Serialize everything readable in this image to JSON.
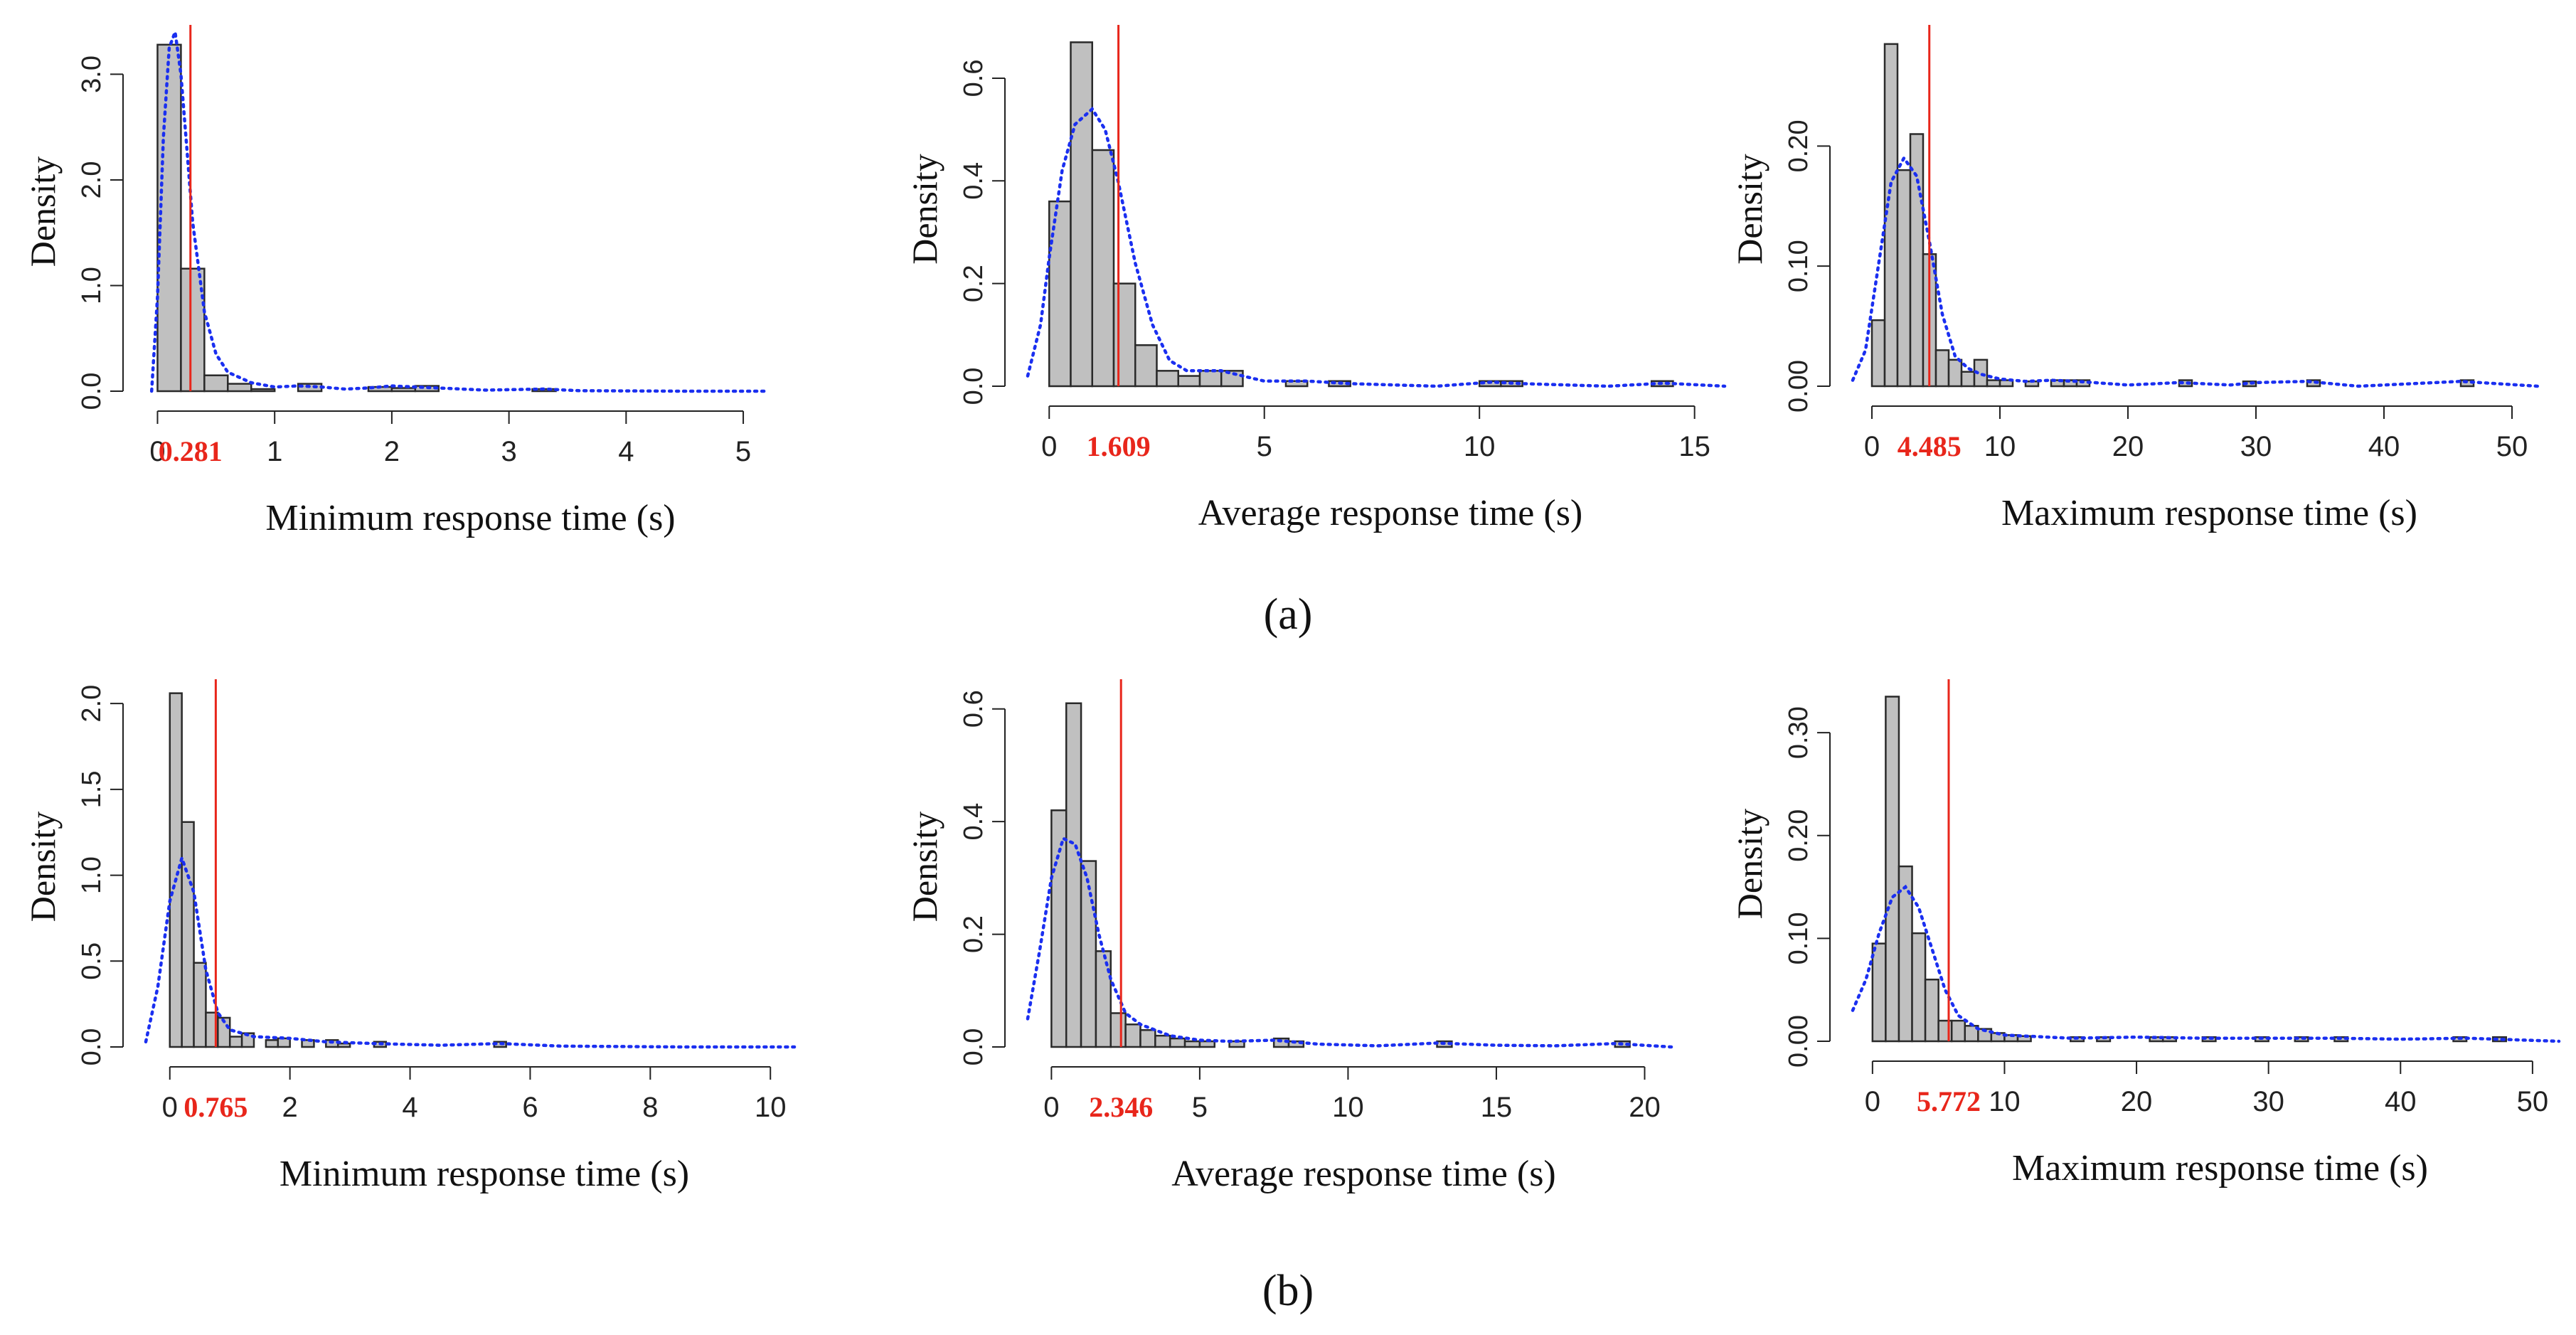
{
  "figure": {
    "row_labels": [
      "(a)",
      "(b)"
    ]
  },
  "colors": {
    "bar_fill": "#c0c0c0",
    "bar_stroke": "#2a2a2a",
    "density_curve": "#1a2ff0",
    "mean_line": "#e8261b",
    "mean_label": "#e8261b",
    "axis": "#222222"
  },
  "chart_data": [
    {
      "type": "bar",
      "subtype": "histogram",
      "row": 0,
      "col": 0,
      "xlabel": "Minimum response time (s)",
      "ylabel": "Density",
      "xlim": [
        -0.1,
        5.2
      ],
      "ylim": [
        0,
        3.4
      ],
      "xticks": [
        0,
        1,
        2,
        3,
        4,
        5
      ],
      "xtick_labels": [
        "0",
        "1",
        "2",
        "3",
        "4",
        "5"
      ],
      "yticks": [
        0,
        1,
        2,
        3
      ],
      "ytick_labels": [
        "0.0",
        "1.0",
        "2.0",
        "3.0"
      ],
      "bin_width": 0.2,
      "bins": [
        [
          0.0,
          3.28
        ],
        [
          0.2,
          1.16
        ],
        [
          0.4,
          0.15
        ],
        [
          0.6,
          0.07
        ],
        [
          0.8,
          0.02
        ],
        [
          1.2,
          0.07
        ],
        [
          1.8,
          0.04
        ],
        [
          2.0,
          0.03
        ],
        [
          2.2,
          0.05
        ],
        [
          3.2,
          0.02
        ]
      ],
      "density_curve": [
        [
          -0.05,
          0.0
        ],
        [
          0.0,
          0.9
        ],
        [
          0.05,
          2.4
        ],
        [
          0.1,
          3.25
        ],
        [
          0.15,
          3.4
        ],
        [
          0.2,
          3.0
        ],
        [
          0.25,
          2.3
        ],
        [
          0.3,
          1.6
        ],
        [
          0.4,
          0.75
        ],
        [
          0.5,
          0.35
        ],
        [
          0.6,
          0.18
        ],
        [
          0.8,
          0.08
        ],
        [
          1.0,
          0.04
        ],
        [
          1.2,
          0.05
        ],
        [
          1.4,
          0.04
        ],
        [
          1.6,
          0.02
        ],
        [
          1.8,
          0.03
        ],
        [
          2.0,
          0.05
        ],
        [
          2.2,
          0.04
        ],
        [
          2.4,
          0.03
        ],
        [
          2.8,
          0.01
        ],
        [
          3.3,
          0.02
        ],
        [
          3.6,
          0.005
        ],
        [
          4.5,
          0.0
        ],
        [
          5.2,
          0.0
        ]
      ],
      "mean_value": 0.281,
      "mean_label": "0.281"
    },
    {
      "type": "bar",
      "subtype": "histogram",
      "row": 0,
      "col": 1,
      "xlabel": "Average response time (s)",
      "ylabel": "Density",
      "xlim": [
        -0.5,
        15.7
      ],
      "ylim": [
        0,
        0.69
      ],
      "xticks": [
        0,
        5,
        10,
        15
      ],
      "xtick_labels": [
        "0",
        "5",
        "10",
        "15"
      ],
      "yticks": [
        0,
        0.2,
        0.4,
        0.6
      ],
      "ytick_labels": [
        "0.0",
        "0.2",
        "0.4",
        "0.6"
      ],
      "bin_width": 0.5,
      "bins": [
        [
          0.0,
          0.36
        ],
        [
          0.5,
          0.67
        ],
        [
          1.0,
          0.46
        ],
        [
          1.5,
          0.2
        ],
        [
          2.0,
          0.08
        ],
        [
          2.5,
          0.03
        ],
        [
          3.0,
          0.02
        ],
        [
          3.5,
          0.03
        ],
        [
          4.0,
          0.03
        ],
        [
          5.5,
          0.01
        ],
        [
          6.5,
          0.01
        ],
        [
          10.0,
          0.01
        ],
        [
          10.5,
          0.01
        ],
        [
          14.0,
          0.01
        ]
      ],
      "density_curve": [
        [
          -0.5,
          0.02
        ],
        [
          -0.2,
          0.12
        ],
        [
          0.0,
          0.25
        ],
        [
          0.3,
          0.42
        ],
        [
          0.6,
          0.51
        ],
        [
          1.0,
          0.54
        ],
        [
          1.3,
          0.5
        ],
        [
          1.6,
          0.4
        ],
        [
          2.0,
          0.24
        ],
        [
          2.4,
          0.12
        ],
        [
          2.8,
          0.05
        ],
        [
          3.2,
          0.03
        ],
        [
          3.6,
          0.03
        ],
        [
          4.0,
          0.03
        ],
        [
          4.5,
          0.02
        ],
        [
          5.0,
          0.01
        ],
        [
          6.0,
          0.01
        ],
        [
          7.0,
          0.005
        ],
        [
          9.0,
          0.0
        ],
        [
          10.3,
          0.008
        ],
        [
          11.0,
          0.005
        ],
        [
          13.0,
          0.0
        ],
        [
          14.3,
          0.006
        ],
        [
          15.7,
          0.0
        ]
      ],
      "mean_value": 1.609,
      "mean_label": "1.609"
    },
    {
      "type": "bar",
      "subtype": "histogram",
      "row": 0,
      "col": 2,
      "xlabel": "Maximum response time (s)",
      "ylabel": "Density",
      "xlim": [
        -1.5,
        52
      ],
      "ylim": [
        0,
        0.295
      ],
      "xticks": [
        0,
        10,
        20,
        30,
        40,
        50
      ],
      "xtick_labels": [
        "0",
        "10",
        "20",
        "30",
        "40",
        "50"
      ],
      "yticks": [
        0,
        0.1,
        0.2
      ],
      "ytick_labels": [
        "0.00",
        "0.10",
        "0.20"
      ],
      "bin_width": 1,
      "bins": [
        [
          0,
          0.055
        ],
        [
          1,
          0.285
        ],
        [
          2,
          0.18
        ],
        [
          3,
          0.21
        ],
        [
          4,
          0.11
        ],
        [
          5,
          0.03
        ],
        [
          6,
          0.022
        ],
        [
          7,
          0.012
        ],
        [
          8,
          0.022
        ],
        [
          9,
          0.005
        ],
        [
          10,
          0.005
        ],
        [
          12,
          0.004
        ],
        [
          14,
          0.005
        ],
        [
          15,
          0.005
        ],
        [
          16,
          0.005
        ],
        [
          24,
          0.005
        ],
        [
          29,
          0.004
        ],
        [
          34,
          0.005
        ],
        [
          46,
          0.005
        ]
      ],
      "density_curve": [
        [
          -1.5,
          0.005
        ],
        [
          -0.5,
          0.03
        ],
        [
          0.5,
          0.1
        ],
        [
          1.5,
          0.17
        ],
        [
          2.5,
          0.19
        ],
        [
          3.5,
          0.175
        ],
        [
          4.5,
          0.12
        ],
        [
          5.5,
          0.06
        ],
        [
          6.5,
          0.025
        ],
        [
          7.5,
          0.015
        ],
        [
          8.5,
          0.01
        ],
        [
          10,
          0.006
        ],
        [
          12,
          0.004
        ],
        [
          14,
          0.005
        ],
        [
          16,
          0.004
        ],
        [
          20,
          0.001
        ],
        [
          24,
          0.003
        ],
        [
          28,
          0.001
        ],
        [
          30,
          0.003
        ],
        [
          34,
          0.004
        ],
        [
          38,
          0.0
        ],
        [
          46,
          0.004
        ],
        [
          52,
          0.0
        ]
      ],
      "mean_value": 4.485,
      "mean_label": "4.485"
    },
    {
      "type": "bar",
      "subtype": "histogram",
      "row": 1,
      "col": 0,
      "xlabel": "Minimum response time (s)",
      "ylabel": "Density",
      "xlim": [
        -0.4,
        10.4
      ],
      "ylim": [
        0,
        2.1
      ],
      "xticks": [
        0,
        2,
        4,
        6,
        8,
        10
      ],
      "xtick_labels": [
        "0",
        "2",
        "4",
        "6",
        "8",
        "10"
      ],
      "yticks": [
        0,
        0.5,
        1,
        1.5,
        2
      ],
      "ytick_labels": [
        "0.0",
        "0.5",
        "1.0",
        "1.5",
        "2.0"
      ],
      "bin_width": 0.2,
      "bins": [
        [
          0.0,
          2.06
        ],
        [
          0.2,
          1.31
        ],
        [
          0.4,
          0.49
        ],
        [
          0.6,
          0.2
        ],
        [
          0.8,
          0.17
        ],
        [
          1.0,
          0.06
        ],
        [
          1.2,
          0.08
        ],
        [
          1.6,
          0.04
        ],
        [
          1.8,
          0.05
        ],
        [
          2.2,
          0.04
        ],
        [
          2.6,
          0.04
        ],
        [
          2.8,
          0.02
        ],
        [
          3.4,
          0.03
        ],
        [
          5.4,
          0.03
        ]
      ],
      "density_curve": [
        [
          -0.4,
          0.03
        ],
        [
          -0.2,
          0.35
        ],
        [
          0.0,
          0.85
        ],
        [
          0.2,
          1.1
        ],
        [
          0.4,
          0.9
        ],
        [
          0.6,
          0.45
        ],
        [
          0.8,
          0.2
        ],
        [
          1.0,
          0.1
        ],
        [
          1.4,
          0.06
        ],
        [
          2.0,
          0.05
        ],
        [
          2.6,
          0.03
        ],
        [
          3.4,
          0.02
        ],
        [
          4.5,
          0.01
        ],
        [
          5.5,
          0.02
        ],
        [
          6.5,
          0.005
        ],
        [
          8.5,
          0.0
        ],
        [
          10.4,
          0.0
        ]
      ],
      "mean_value": 0.765,
      "mean_label": "0.765"
    },
    {
      "type": "bar",
      "subtype": "histogram",
      "row": 1,
      "col": 1,
      "xlabel": "Average response time (s)",
      "ylabel": "Density",
      "xlim": [
        -0.8,
        20.9
      ],
      "ylim": [
        0,
        0.64
      ],
      "xticks": [
        0,
        5,
        10,
        15,
        20
      ],
      "xtick_labels": [
        "0",
        "5",
        "10",
        "15",
        "20"
      ],
      "yticks": [
        0,
        0.2,
        0.4,
        0.6
      ],
      "ytick_labels": [
        "0.0",
        "0.2",
        "0.4",
        "0.6"
      ],
      "bin_width": 0.5,
      "bins": [
        [
          0.0,
          0.42
        ],
        [
          0.5,
          0.61
        ],
        [
          1.0,
          0.33
        ],
        [
          1.5,
          0.17
        ],
        [
          2.0,
          0.06
        ],
        [
          2.5,
          0.04
        ],
        [
          3.0,
          0.03
        ],
        [
          3.5,
          0.02
        ],
        [
          4.0,
          0.015
        ],
        [
          4.5,
          0.01
        ],
        [
          5.0,
          0.01
        ],
        [
          6.0,
          0.01
        ],
        [
          7.5,
          0.015
        ],
        [
          8.0,
          0.01
        ],
        [
          13.0,
          0.01
        ],
        [
          19.0,
          0.01
        ]
      ],
      "density_curve": [
        [
          -0.8,
          0.05
        ],
        [
          -0.4,
          0.17
        ],
        [
          0.0,
          0.3
        ],
        [
          0.4,
          0.37
        ],
        [
          0.8,
          0.36
        ],
        [
          1.2,
          0.3
        ],
        [
          1.6,
          0.2
        ],
        [
          2.0,
          0.12
        ],
        [
          2.5,
          0.06
        ],
        [
          3.0,
          0.04
        ],
        [
          4.0,
          0.02
        ],
        [
          5.0,
          0.012
        ],
        [
          6.0,
          0.01
        ],
        [
          7.5,
          0.012
        ],
        [
          9.0,
          0.005
        ],
        [
          11.0,
          0.002
        ],
        [
          13.0,
          0.007
        ],
        [
          15.0,
          0.003
        ],
        [
          17.0,
          0.002
        ],
        [
          19.0,
          0.006
        ],
        [
          20.9,
          0.0
        ]
      ],
      "mean_value": 2.346,
      "mean_label": "2.346"
    },
    {
      "type": "bar",
      "subtype": "histogram",
      "row": 1,
      "col": 2,
      "xlabel": "Maximum response time (s)",
      "ylabel": "Density",
      "xlim": [
        -1.5,
        52
      ],
      "ylim": [
        0,
        0.345
      ],
      "xticks": [
        0,
        10,
        20,
        30,
        40,
        50
      ],
      "xtick_labels": [
        "0",
        "10",
        "20",
        "30",
        "40",
        "50"
      ],
      "yticks": [
        0,
        0.1,
        0.2,
        0.3
      ],
      "ytick_labels": [
        "0.00",
        "0.10",
        "0.20",
        "0.30"
      ],
      "bin_width": 1,
      "bins": [
        [
          0,
          0.095
        ],
        [
          1,
          0.335
        ],
        [
          2,
          0.17
        ],
        [
          3,
          0.105
        ],
        [
          4,
          0.06
        ],
        [
          5,
          0.02
        ],
        [
          6,
          0.02
        ],
        [
          7,
          0.015
        ],
        [
          8,
          0.012
        ],
        [
          9,
          0.008
        ],
        [
          10,
          0.006
        ],
        [
          11,
          0.005
        ],
        [
          15,
          0.004
        ],
        [
          17,
          0.004
        ],
        [
          21,
          0.004
        ],
        [
          22,
          0.004
        ],
        [
          25,
          0.004
        ],
        [
          29,
          0.004
        ],
        [
          32,
          0.004
        ],
        [
          35,
          0.004
        ],
        [
          44,
          0.004
        ],
        [
          47,
          0.004
        ]
      ],
      "density_curve": [
        [
          -1.5,
          0.03
        ],
        [
          -0.5,
          0.06
        ],
        [
          0.5,
          0.105
        ],
        [
          1.5,
          0.14
        ],
        [
          2.5,
          0.15
        ],
        [
          3.5,
          0.13
        ],
        [
          4.5,
          0.09
        ],
        [
          5.5,
          0.05
        ],
        [
          6.5,
          0.025
        ],
        [
          8,
          0.012
        ],
        [
          10,
          0.006
        ],
        [
          15,
          0.003
        ],
        [
          20,
          0.004
        ],
        [
          25,
          0.003
        ],
        [
          30,
          0.003
        ],
        [
          35,
          0.003
        ],
        [
          40,
          0.002
        ],
        [
          45,
          0.003
        ],
        [
          52,
          0.0
        ]
      ],
      "mean_value": 5.772,
      "mean_label": "5.772"
    }
  ]
}
